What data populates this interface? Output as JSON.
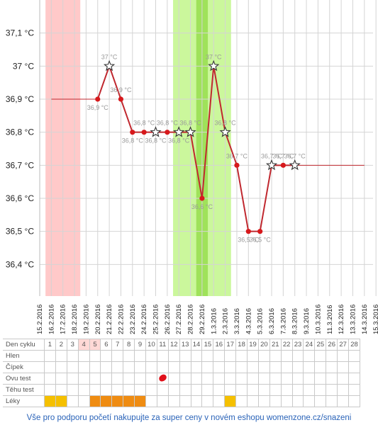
{
  "chart_data": {
    "type": "line",
    "x": [
      "15.2.2016",
      "16.2.2016",
      "17.2.2016",
      "18.2.2016",
      "19.2.2016",
      "20.2.2016",
      "21.2.2016",
      "22.2.2016",
      "23.2.2016",
      "24.2.2016",
      "25.2.2016",
      "26.2.2016",
      "27.2.2016",
      "28.2.2016",
      "29.2.2016",
      "1.3.2016",
      "2.3.2016",
      "3.3.2016",
      "4.3.2016",
      "5.3.2016",
      "6.3.2016",
      "7.3.2016",
      "8.3.2016",
      "9.3.2016",
      "10.3.2016",
      "11.3.2016",
      "12.3.2016",
      "13.3.2016",
      "14.3.2016",
      "15.3.2016"
    ],
    "y_ticks": [
      "37,1 °C",
      "37 °C",
      "36,9 °C",
      "36,8 °C",
      "36,7 °C",
      "36,6 °C",
      "36,5 °C",
      "36,4 °C"
    ],
    "ylim": [
      36.3,
      37.2
    ],
    "grid": true,
    "cover_line_level": 36.9,
    "cover_line_level_2": 36.7,
    "bands": [
      {
        "name": "menstruation",
        "from": "16.2.2016",
        "to": "18.2.2016",
        "color": "#ffc9c9"
      },
      {
        "name": "fertile",
        "from": "27.2.2016",
        "to": "2.3.2016",
        "color": "#cbf79c"
      },
      {
        "name": "ovulation",
        "from": "29.2.2016",
        "to": "29.2.2016",
        "color": "#9fe25a"
      }
    ],
    "colors": {
      "line": "#c0282f",
      "point": "#d7191c",
      "cover": "#c0282f"
    },
    "points": [
      {
        "x": "20.2.2016",
        "y": 36.9,
        "label": "36,9 °C",
        "marker": "dot"
      },
      {
        "x": "21.2.2016",
        "y": 37.0,
        "label": "37 °C",
        "marker": "star"
      },
      {
        "x": "22.2.2016",
        "y": 36.9,
        "label": "36,9 °C",
        "marker": "dot"
      },
      {
        "x": "23.2.2016",
        "y": 36.8,
        "label": "36,8 °C",
        "marker": "dot"
      },
      {
        "x": "24.2.2016",
        "y": 36.8,
        "label": "36,8 °C",
        "marker": "dot"
      },
      {
        "x": "25.2.2016",
        "y": 36.8,
        "label": "36,8 °C",
        "marker": "star"
      },
      {
        "x": "26.2.2016",
        "y": 36.8,
        "label": "36,8 °C",
        "marker": "dot"
      },
      {
        "x": "27.2.2016",
        "y": 36.8,
        "label": "36,8 °C",
        "marker": "star"
      },
      {
        "x": "28.2.2016",
        "y": 36.8,
        "label": "36,8 °C",
        "marker": "star"
      },
      {
        "x": "29.2.2016",
        "y": 36.6,
        "label": "36,6 °C",
        "marker": "dot"
      },
      {
        "x": "1.3.2016",
        "y": 37.0,
        "label": "37 °C",
        "marker": "star"
      },
      {
        "x": "2.3.2016",
        "y": 36.8,
        "label": "36,8 °C",
        "marker": "star"
      },
      {
        "x": "3.3.2016",
        "y": 36.7,
        "label": "36,7 °C",
        "marker": "dot"
      },
      {
        "x": "4.3.2016",
        "y": 36.5,
        "label": "36,5 °C",
        "marker": "dot"
      },
      {
        "x": "5.3.2016",
        "y": 36.5,
        "label": "36,5 °C",
        "marker": "dot"
      },
      {
        "x": "6.3.2016",
        "y": 36.7,
        "label": "36,7 °C",
        "marker": "star"
      },
      {
        "x": "7.3.2016",
        "y": 36.7,
        "label": "36,7 °C",
        "marker": "dot"
      },
      {
        "x": "8.3.2016",
        "y": 36.7,
        "label": "36,7 °C",
        "marker": "star"
      }
    ],
    "lines": [
      {
        "name": "cover-left",
        "from": "16.2.2016",
        "to": "20.2.2016",
        "y": 36.9
      },
      {
        "name": "cover-right",
        "from": "8.3.2016",
        "to": "14.3.2016",
        "y": 36.7
      }
    ]
  },
  "table": {
    "header_label": "Den cyklu",
    "days": [
      "1",
      "2",
      "3",
      "4",
      "5",
      "6",
      "7",
      "8",
      "9",
      "10",
      "11",
      "12",
      "13",
      "14",
      "15",
      "16",
      "17",
      "18",
      "19",
      "20",
      "21",
      "22",
      "23",
      "24",
      "25",
      "26",
      "27",
      "28"
    ],
    "highlight_days": [
      4,
      5
    ],
    "rows": [
      {
        "label": "Hlen",
        "key": "hlen"
      },
      {
        "label": "Čípek",
        "key": "cipek"
      },
      {
        "label": "Ovu test",
        "key": "ovu",
        "marks": {
          "11": "red-blob"
        }
      },
      {
        "label": "Těhu test",
        "key": "tehu"
      },
      {
        "label": "Léky",
        "key": "leky",
        "marks": {
          "1": "yellow",
          "2": "yellow",
          "5": "orange",
          "6": "orange",
          "7": "orange",
          "8": "orange",
          "9": "orange",
          "17": "yellow"
        }
      }
    ]
  },
  "footer": "Vše pro podporu početí nakupujte za super ceny v novém eshopu womenzone.cz/snazeni"
}
